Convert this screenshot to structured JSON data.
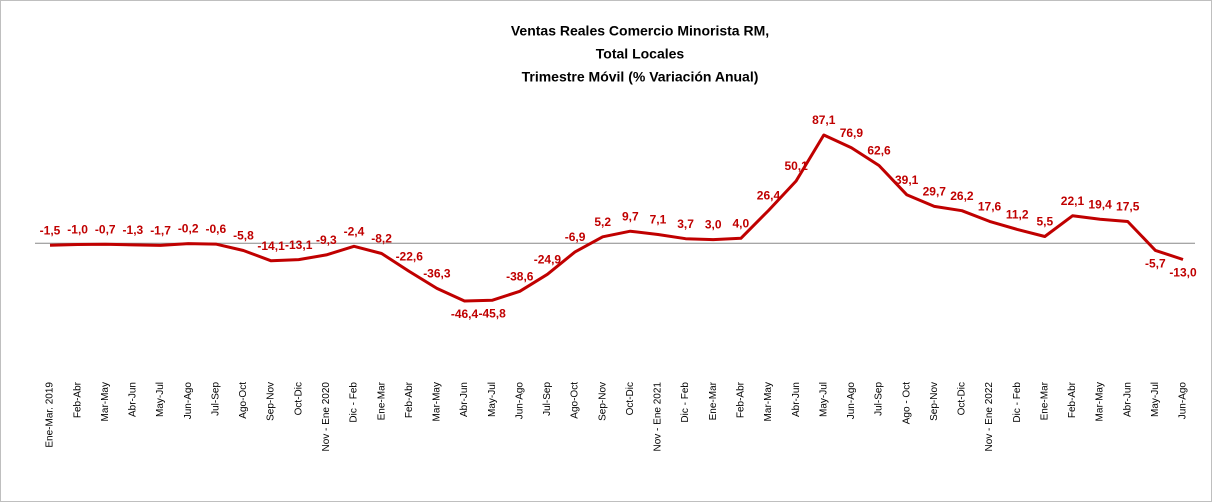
{
  "chart_data": {
    "type": "line",
    "title": [
      "Ventas Reales Comercio Minorista RM,",
      "Total Locales",
      "Trimestre Móvil (% Variación Anual)"
    ],
    "color": "#c00000",
    "categories": [
      "Ene-Mar. 2019",
      "Feb-Abr",
      "Mar-May",
      "Abr-Jun",
      "May-Jul",
      "Jun-Ago",
      "Jul-Sep",
      "Ago-Oct",
      "Sep-Nov",
      "Oct-Dic",
      "Nov - Ene 2020",
      "Dic - Feb",
      "Ene-Mar",
      "Feb-Abr",
      "Mar-May",
      "Abr-Jun",
      "May-Jul",
      "Jun-Ago",
      "Jul-Sep",
      "Ago-Oct",
      "Sep-Nov",
      "Oct-Dic",
      "Nov - Ene 2021",
      "Dic - Feb",
      "Ene-Mar",
      "Feb-Abr",
      "Mar-May",
      "Abr-Jun",
      "May-Jul",
      "Jun-Ago",
      "Jul-Sep",
      "Ago - Oct",
      "Sep-Nov",
      "Oct-Dic",
      "Nov - Ene 2022",
      "Dic - Feb",
      "Ene-Mar",
      "Feb-Abr",
      "Mar-May",
      "Abr-Jun",
      "May-Jul",
      "Jun-Ago"
    ],
    "values": [
      -1.5,
      -1.0,
      -0.7,
      -1.3,
      -1.7,
      -0.2,
      -0.6,
      -5.8,
      -14.1,
      -13.1,
      -9.3,
      -2.4,
      -8.2,
      -22.6,
      -36.3,
      -46.4,
      -45.8,
      -38.6,
      -24.9,
      -6.9,
      5.2,
      9.7,
      7.1,
      3.7,
      3.0,
      4.0,
      26.4,
      50.1,
      87.1,
      76.9,
      62.6,
      39.1,
      29.7,
      26.2,
      17.6,
      11.2,
      5.5,
      22.1,
      19.4,
      17.5,
      -5.7,
      -13.0
    ],
    "value_labels": [
      "-1,5",
      "-1,0",
      "-0,7",
      "-1,3",
      "-1,7",
      "-0,2",
      "-0,6",
      "-5,8",
      "-14,1",
      "-13,1",
      "-9,3",
      "-2,4",
      "-8,2",
      "-22,6",
      "-36,3",
      "-46,4",
      "-45,8",
      "-38,6",
      "-24,9",
      "-6,9",
      "5,2",
      "9,7",
      "7,1",
      "3,7",
      "3,0",
      "4,0",
      "26,4",
      "50,1",
      "87,1",
      "76,9",
      "62,6",
      "39,1",
      "29,7",
      "26,2",
      "17,6",
      "11,2",
      "5,5",
      "22,1",
      "19,4",
      "17,5",
      "-5,7",
      "-13,0"
    ]
  }
}
